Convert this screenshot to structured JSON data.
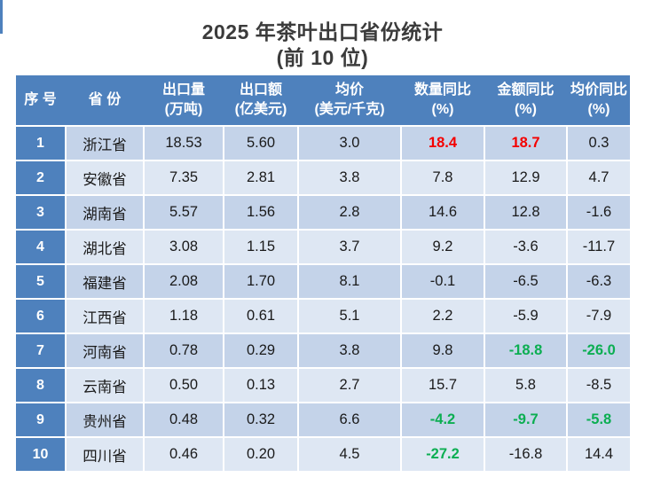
{
  "title": {
    "line1": "2025 年茶叶出口省份统计",
    "line2": "(前 10 位)"
  },
  "colors": {
    "header_bg": "#4e81bd",
    "row_stripe_dark": "#c4d3e9",
    "row_stripe_light": "#dee7f3",
    "highlight_red": "#f40000",
    "highlight_green": "#0cae52",
    "header_text": "#ffffff",
    "body_text": "#1a1a1a",
    "title_text": "#3b3b3b"
  },
  "table": {
    "columns": [
      {
        "label": "序 号",
        "unit": ""
      },
      {
        "label": "省 份",
        "unit": ""
      },
      {
        "label": "出口量",
        "unit": "(万吨)"
      },
      {
        "label": "出口额",
        "unit": "(亿美元)"
      },
      {
        "label": "均价",
        "unit": "(美元/千克)"
      },
      {
        "label": "数量同比",
        "unit": "(%)"
      },
      {
        "label": "金额同比",
        "unit": "(%)"
      },
      {
        "label": "均价同比",
        "unit": "(%)"
      }
    ],
    "rows": [
      {
        "rank": "1",
        "province": "浙江省",
        "volume": "18.53",
        "value": "5.60",
        "avg_price": "3.0",
        "volume_yoy": "18.4",
        "value_yoy": "18.7",
        "price_yoy": "0.3",
        "volume_yoy_color": "#f40000",
        "value_yoy_color": "#f40000"
      },
      {
        "rank": "2",
        "province": "安徽省",
        "volume": "7.35",
        "value": "2.81",
        "avg_price": "3.8",
        "volume_yoy": "7.8",
        "value_yoy": "12.9",
        "price_yoy": "4.7"
      },
      {
        "rank": "3",
        "province": "湖南省",
        "volume": "5.57",
        "value": "1.56",
        "avg_price": "2.8",
        "volume_yoy": "14.6",
        "value_yoy": "12.8",
        "price_yoy": "-1.6"
      },
      {
        "rank": "4",
        "province": "湖北省",
        "volume": "3.08",
        "value": "1.15",
        "avg_price": "3.7",
        "volume_yoy": "9.2",
        "value_yoy": "-3.6",
        "price_yoy": "-11.7"
      },
      {
        "rank": "5",
        "province": "福建省",
        "volume": "2.08",
        "value": "1.70",
        "avg_price": "8.1",
        "volume_yoy": "-0.1",
        "value_yoy": "-6.5",
        "price_yoy": "-6.3"
      },
      {
        "rank": "6",
        "province": "江西省",
        "volume": "1.18",
        "value": "0.61",
        "avg_price": "5.1",
        "volume_yoy": "2.2",
        "value_yoy": "-5.9",
        "price_yoy": "-7.9"
      },
      {
        "rank": "7",
        "province": "河南省",
        "volume": "0.78",
        "value": "0.29",
        "avg_price": "3.8",
        "volume_yoy": "9.8",
        "value_yoy": "-18.8",
        "price_yoy": "-26.0",
        "value_yoy_color": "#0cae52",
        "price_yoy_color": "#0cae52"
      },
      {
        "rank": "8",
        "province": "云南省",
        "volume": "0.50",
        "value": "0.13",
        "avg_price": "2.7",
        "volume_yoy": "15.7",
        "value_yoy": "5.8",
        "price_yoy": "-8.5"
      },
      {
        "rank": "9",
        "province": "贵州省",
        "volume": "0.48",
        "value": "0.32",
        "avg_price": "6.6",
        "volume_yoy": "-4.2",
        "value_yoy": "-9.7",
        "price_yoy": "-5.8",
        "volume_yoy_color": "#0cae52",
        "value_yoy_color": "#0cae52",
        "price_yoy_color": "#0cae52"
      },
      {
        "rank": "10",
        "province": "四川省",
        "volume": "0.46",
        "value": "0.20",
        "avg_price": "4.5",
        "volume_yoy": "-27.2",
        "value_yoy": "-16.8",
        "price_yoy": "14.4",
        "volume_yoy_color": "#0cae52"
      }
    ]
  }
}
